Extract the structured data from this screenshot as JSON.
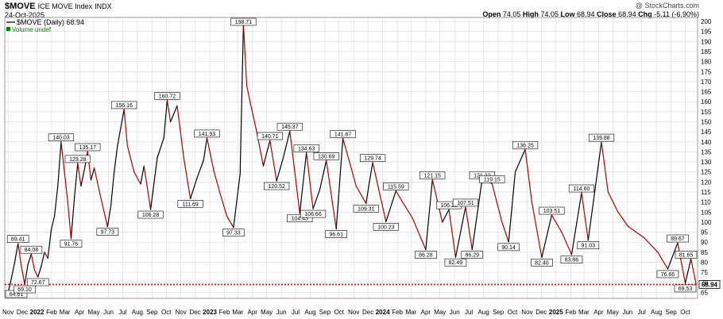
{
  "header": {
    "symbol": "$MOVE",
    "name": "ICE MOVE Index",
    "exchange": "INDX",
    "date": "24-Oct-2025",
    "copyright": "@ StockCharts.com",
    "ohlc": {
      "open_label": "Open",
      "open": "74.05",
      "high_label": "High",
      "high": "74.05",
      "low_label": "Low",
      "low": "68.94",
      "close_label": "Close",
      "close": "68.94",
      "chg_label": "Chg",
      "chg": "-5.11 (-6.90%)"
    }
  },
  "legend": {
    "series_label": "$MOVE (Daily) 68.94",
    "volume_label": "Volume undef"
  },
  "colors": {
    "line": "#b00000",
    "up_segment": "#000000",
    "reference_line": "#ff0000",
    "grid": "#d8d8d8",
    "volume_label": "#008000"
  },
  "chart_data": {
    "type": "line",
    "series": [
      {
        "name": "$MOVE (Daily)",
        "points": [
          [
            "2021-11-01",
            64.61
          ],
          [
            "2021-11-08",
            72
          ],
          [
            "2021-11-15",
            80
          ],
          [
            "2021-11-22",
            89.41
          ],
          [
            "2021-11-29",
            78
          ],
          [
            "2021-12-06",
            69.1
          ],
          [
            "2021-12-13",
            79
          ],
          [
            "2021-12-20",
            84.08
          ],
          [
            "2021-12-27",
            76
          ],
          [
            "2022-01-03",
            72.67
          ],
          [
            "2022-01-10",
            78
          ],
          [
            "2022-01-17",
            85
          ],
          [
            "2022-01-24",
            82
          ],
          [
            "2022-01-31",
            96
          ],
          [
            "2022-02-07",
            103
          ],
          [
            "2022-02-14",
            118
          ],
          [
            "2022-02-21",
            140.03
          ],
          [
            "2022-02-28",
            125
          ],
          [
            "2022-03-07",
            110
          ],
          [
            "2022-03-14",
            91.76
          ],
          [
            "2022-03-21",
            112
          ],
          [
            "2022-03-28",
            129.28
          ],
          [
            "2022-04-04",
            118
          ],
          [
            "2022-04-11",
            126
          ],
          [
            "2022-04-18",
            135.17
          ],
          [
            "2022-04-25",
            121
          ],
          [
            "2022-05-02",
            127
          ],
          [
            "2022-05-16",
            112
          ],
          [
            "2022-05-30",
            97.73
          ],
          [
            "2022-06-06",
            108
          ],
          [
            "2022-06-13",
            125
          ],
          [
            "2022-06-20",
            138
          ],
          [
            "2022-07-04",
            156.16
          ],
          [
            "2022-07-11",
            138
          ],
          [
            "2022-07-25",
            125
          ],
          [
            "2022-08-08",
            119
          ],
          [
            "2022-08-15",
            128
          ],
          [
            "2022-08-29",
            106.28
          ],
          [
            "2022-09-12",
            132
          ],
          [
            "2022-09-26",
            142
          ],
          [
            "2022-10-03",
            160.72
          ],
          [
            "2022-10-10",
            150
          ],
          [
            "2022-10-24",
            158
          ],
          [
            "2022-11-07",
            132
          ],
          [
            "2022-11-21",
            111.69
          ],
          [
            "2022-12-05",
            122
          ],
          [
            "2022-12-19",
            131
          ],
          [
            "2022-12-26",
            141.93
          ],
          [
            "2023-01-09",
            126
          ],
          [
            "2023-01-23",
            114
          ],
          [
            "2023-02-06",
            103
          ],
          [
            "2023-02-20",
            97.33
          ],
          [
            "2023-03-06",
            124
          ],
          [
            "2023-03-13",
            198.71
          ],
          [
            "2023-03-20",
            168
          ],
          [
            "2023-03-27",
            160
          ],
          [
            "2023-04-10",
            145
          ],
          [
            "2023-04-24",
            128
          ],
          [
            "2023-05-08",
            140.71
          ],
          [
            "2023-05-22",
            120.52
          ],
          [
            "2023-06-05",
            132
          ],
          [
            "2023-06-19",
            145.37
          ],
          [
            "2023-07-03",
            118
          ],
          [
            "2023-07-10",
            104.43
          ],
          [
            "2023-07-24",
            134.63
          ],
          [
            "2023-08-07",
            106.66
          ],
          [
            "2023-08-21",
            116
          ],
          [
            "2023-09-04",
            130.69
          ],
          [
            "2023-09-25",
            96.61
          ],
          [
            "2023-10-09",
            141.67
          ],
          [
            "2023-10-23",
            130
          ],
          [
            "2023-11-06",
            118
          ],
          [
            "2023-11-27",
            109.31
          ],
          [
            "2023-12-04",
            120
          ],
          [
            "2023-12-11",
            129.74
          ],
          [
            "2023-12-25",
            115
          ],
          [
            "2024-01-08",
            100.23
          ],
          [
            "2024-01-29",
            115.59
          ],
          [
            "2024-02-12",
            110
          ],
          [
            "2024-03-04",
            102
          ],
          [
            "2024-04-01",
            86.28
          ],
          [
            "2024-04-15",
            121.15
          ],
          [
            "2024-05-06",
            100
          ],
          [
            "2024-05-20",
            106.25
          ],
          [
            "2024-06-03",
            82.49
          ],
          [
            "2024-06-24",
            107.51
          ],
          [
            "2024-07-08",
            86.29
          ],
          [
            "2024-07-29",
            121.22
          ],
          [
            "2024-08-19",
            119.15
          ],
          [
            "2024-09-09",
            100
          ],
          [
            "2024-09-23",
            90.14
          ],
          [
            "2024-10-07",
            125
          ],
          [
            "2024-10-28",
            136.25
          ],
          [
            "2024-11-11",
            110
          ],
          [
            "2024-12-02",
            82.4
          ],
          [
            "2024-12-23",
            103.51
          ],
          [
            "2025-01-13",
            95
          ],
          [
            "2025-02-03",
            83.86
          ],
          [
            "2025-02-24",
            114.6
          ],
          [
            "2025-03-10",
            91.03
          ],
          [
            "2025-04-07",
            139.88
          ],
          [
            "2025-04-21",
            115
          ],
          [
            "2025-05-12",
            105
          ],
          [
            "2025-06-02",
            98
          ],
          [
            "2025-07-07",
            92
          ],
          [
            "2025-08-04",
            85
          ],
          [
            "2025-08-25",
            76.66
          ],
          [
            "2025-09-15",
            89.67
          ],
          [
            "2025-10-01",
            69.53
          ],
          [
            "2025-10-13",
            81.65
          ],
          [
            "2025-10-24",
            68.94
          ]
        ]
      }
    ],
    "labels": [
      {
        "date": "2021-11-01",
        "value": "64.61",
        "pos": "below"
      },
      {
        "date": "2021-11-22",
        "value": "89.41",
        "pos": "above"
      },
      {
        "date": "2021-12-06",
        "value": "69.10",
        "pos": "below"
      },
      {
        "date": "2021-12-20",
        "value": "84.08",
        "pos": "above"
      },
      {
        "date": "2022-01-03",
        "value": "72.67",
        "pos": "below"
      },
      {
        "date": "2022-02-21",
        "value": "140.03",
        "pos": "above"
      },
      {
        "date": "2022-03-14",
        "value": "91.76",
        "pos": "below"
      },
      {
        "date": "2022-03-28",
        "value": "129.28",
        "pos": "above"
      },
      {
        "date": "2022-04-18",
        "value": "135.17",
        "pos": "above"
      },
      {
        "date": "2022-05-30",
        "value": "97.73",
        "pos": "below"
      },
      {
        "date": "2022-07-04",
        "value": "156.16",
        "pos": "above"
      },
      {
        "date": "2022-08-29",
        "value": "106.28",
        "pos": "below"
      },
      {
        "date": "2022-10-03",
        "value": "160.72",
        "pos": "above"
      },
      {
        "date": "2022-11-21",
        "value": "111.69",
        "pos": "below"
      },
      {
        "date": "2022-12-26",
        "value": "141.93",
        "pos": "above"
      },
      {
        "date": "2023-02-20",
        "value": "97.33",
        "pos": "below"
      },
      {
        "date": "2023-03-13",
        "value": "198.71",
        "pos": "above"
      },
      {
        "date": "2023-05-08",
        "value": "140.71",
        "pos": "above"
      },
      {
        "date": "2023-05-22",
        "value": "120.52",
        "pos": "below"
      },
      {
        "date": "2023-06-19",
        "value": "145.37",
        "pos": "above"
      },
      {
        "date": "2023-07-10",
        "value": "104.43",
        "pos": "below"
      },
      {
        "date": "2023-07-24",
        "value": "134.63",
        "pos": "above"
      },
      {
        "date": "2023-08-07",
        "value": "106.66",
        "pos": "below"
      },
      {
        "date": "2023-09-04",
        "value": "130.69",
        "pos": "above"
      },
      {
        "date": "2023-09-25",
        "value": "96.61",
        "pos": "below"
      },
      {
        "date": "2023-10-09",
        "value": "141.67",
        "pos": "above"
      },
      {
        "date": "2023-11-27",
        "value": "109.31",
        "pos": "below"
      },
      {
        "date": "2023-12-11",
        "value": "129.74",
        "pos": "above"
      },
      {
        "date": "2024-01-08",
        "value": "100.23",
        "pos": "below"
      },
      {
        "date": "2024-01-29",
        "value": "115.59",
        "pos": "above"
      },
      {
        "date": "2024-04-01",
        "value": "86.28",
        "pos": "below"
      },
      {
        "date": "2024-04-15",
        "value": "121.15",
        "pos": "above"
      },
      {
        "date": "2024-05-20",
        "value": "106.25",
        "pos": "above"
      },
      {
        "date": "2024-06-03",
        "value": "82.49",
        "pos": "below"
      },
      {
        "date": "2024-06-24",
        "value": "107.51",
        "pos": "above"
      },
      {
        "date": "2024-07-08",
        "value": "86.29",
        "pos": "below"
      },
      {
        "date": "2024-07-29",
        "value": "121.22",
        "pos": "above"
      },
      {
        "date": "2024-08-19",
        "value": "119.15",
        "pos": "above"
      },
      {
        "date": "2024-09-23",
        "value": "90.14",
        "pos": "below"
      },
      {
        "date": "2024-10-28",
        "value": "136.25",
        "pos": "above"
      },
      {
        "date": "2024-12-02",
        "value": "82.40",
        "pos": "below"
      },
      {
        "date": "2024-12-23",
        "value": "103.51",
        "pos": "above"
      },
      {
        "date": "2025-02-03",
        "value": "83.86",
        "pos": "below"
      },
      {
        "date": "2025-02-24",
        "value": "114.60",
        "pos": "above"
      },
      {
        "date": "2025-03-10",
        "value": "91.03",
        "pos": "below"
      },
      {
        "date": "2025-04-07",
        "value": "139.88",
        "pos": "above"
      },
      {
        "date": "2025-08-25",
        "value": "76.66",
        "pos": "below"
      },
      {
        "date": "2025-09-15",
        "value": "89.67",
        "pos": "above"
      },
      {
        "date": "2025-10-01",
        "value": "69.53",
        "pos": "below"
      },
      {
        "date": "2025-10-13",
        "value": "81.65",
        "pos": "above"
      }
    ],
    "reference_line": {
      "value": 68.94,
      "style": "dotted",
      "label": "68.94"
    },
    "y_axis": {
      "side": "right",
      "range": [
        62,
        202
      ],
      "ticks": [
        "65",
        "70",
        "75",
        "80",
        "85",
        "90",
        "95",
        "100",
        "105",
        "110",
        "115",
        "120",
        "125",
        "130",
        "135",
        "140",
        "145",
        "150",
        "155",
        "160",
        "165",
        "170",
        "175",
        "180",
        "185",
        "190",
        "195",
        "200"
      ]
    },
    "x_axis": {
      "range": [
        "2021-10-25",
        "2025-10-27"
      ],
      "ticks": [
        {
          "date": "2021-11-01",
          "label": "Nov"
        },
        {
          "date": "2021-12-01",
          "label": "Dec"
        },
        {
          "date": "2022-01-01",
          "label": "2022",
          "bold": true
        },
        {
          "date": "2022-02-01",
          "label": "Feb"
        },
        {
          "date": "2022-03-01",
          "label": "Mar"
        },
        {
          "date": "2022-04-01",
          "label": "Apr"
        },
        {
          "date": "2022-05-01",
          "label": "May"
        },
        {
          "date": "2022-06-01",
          "label": "Jun"
        },
        {
          "date": "2022-07-01",
          "label": "Jul"
        },
        {
          "date": "2022-08-01",
          "label": "Aug"
        },
        {
          "date": "2022-09-01",
          "label": "Sep"
        },
        {
          "date": "2022-10-01",
          "label": "Oct"
        },
        {
          "date": "2022-11-01",
          "label": "Nov"
        },
        {
          "date": "2022-12-01",
          "label": "Dec"
        },
        {
          "date": "2023-01-01",
          "label": "2023",
          "bold": true
        },
        {
          "date": "2023-02-01",
          "label": "Feb"
        },
        {
          "date": "2023-03-01",
          "label": "Mar"
        },
        {
          "date": "2023-04-01",
          "label": "Apr"
        },
        {
          "date": "2023-05-01",
          "label": "May"
        },
        {
          "date": "2023-06-01",
          "label": "Jun"
        },
        {
          "date": "2023-07-01",
          "label": "Jul"
        },
        {
          "date": "2023-08-01",
          "label": "Aug"
        },
        {
          "date": "2023-09-01",
          "label": "Sep"
        },
        {
          "date": "2023-10-01",
          "label": "Oct"
        },
        {
          "date": "2023-11-01",
          "label": "Nov"
        },
        {
          "date": "2023-12-01",
          "label": "Dec"
        },
        {
          "date": "2024-01-01",
          "label": "2024",
          "bold": true
        },
        {
          "date": "2024-02-01",
          "label": "Feb"
        },
        {
          "date": "2024-03-01",
          "label": "Mar"
        },
        {
          "date": "2024-04-01",
          "label": "Apr"
        },
        {
          "date": "2024-05-01",
          "label": "May"
        },
        {
          "date": "2024-06-01",
          "label": "Jun"
        },
        {
          "date": "2024-07-01",
          "label": "Jul"
        },
        {
          "date": "2024-08-01",
          "label": "Aug"
        },
        {
          "date": "2024-09-01",
          "label": "Sep"
        },
        {
          "date": "2024-10-01",
          "label": "Oct"
        },
        {
          "date": "2024-11-01",
          "label": "Nov"
        },
        {
          "date": "2024-12-01",
          "label": "Dec"
        },
        {
          "date": "2025-01-01",
          "label": "2025",
          "bold": true
        },
        {
          "date": "2025-02-01",
          "label": "Feb"
        },
        {
          "date": "2025-03-01",
          "label": "Mar"
        },
        {
          "date": "2025-04-01",
          "label": "Apr"
        },
        {
          "date": "2025-05-01",
          "label": "May"
        },
        {
          "date": "2025-06-01",
          "label": "Jun"
        },
        {
          "date": "2025-07-01",
          "label": "Jul"
        },
        {
          "date": "2025-08-01",
          "label": "Aug"
        },
        {
          "date": "2025-09-01",
          "label": "Sep"
        },
        {
          "date": "2025-10-01",
          "label": "Oct"
        }
      ]
    },
    "grid": true
  }
}
